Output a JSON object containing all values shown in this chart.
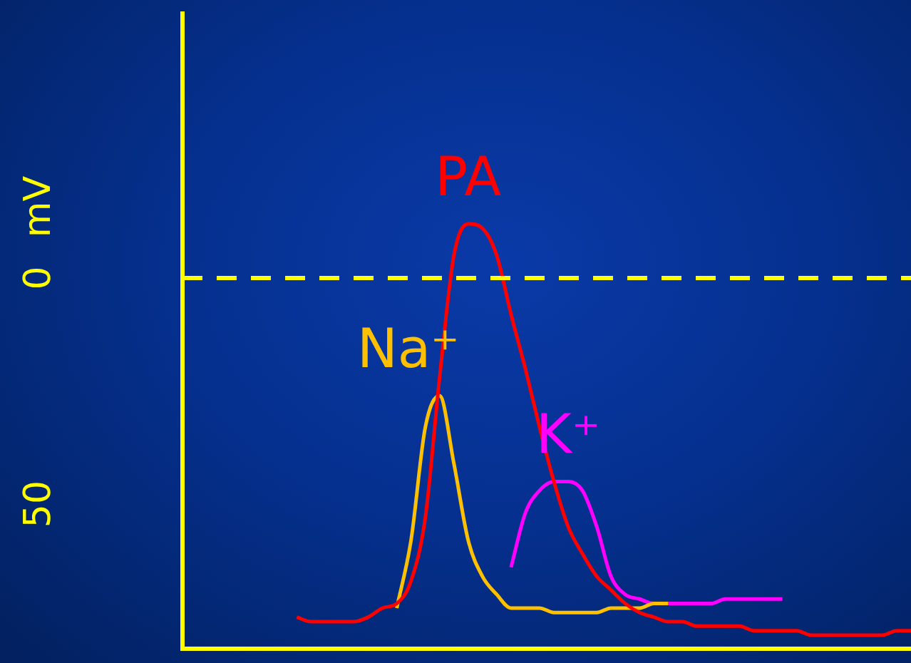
{
  "chart_data": {
    "type": "line",
    "ylabel": "mV",
    "categories": [
      null,
      null,
      null,
      null,
      null,
      null,
      null,
      null,
      null,
      null,
      null,
      null,
      null,
      null,
      null,
      null,
      null,
      null,
      null,
      null,
      null,
      null,
      null,
      null,
      null,
      null,
      null,
      null,
      null,
      null,
      null,
      null,
      null,
      null,
      null,
      null,
      null,
      null,
      null,
      null,
      null,
      null,
      null,
      null,
      null,
      null,
      null,
      null,
      null,
      null,
      null,
      null
    ],
    "series": [
      {
        "name": "PA",
        "color": "#ff0000",
        "values": [
          null,
          null,
          null,
          null,
          null,
          null,
          null,
          null,
          -75,
          -76,
          -76,
          -76,
          -76,
          -75,
          -73,
          -72,
          -67,
          -53,
          -22,
          5,
          12,
          11,
          5,
          -8,
          -20,
          -33,
          -45,
          -55,
          -61,
          -66,
          -69,
          -72,
          -74,
          -75,
          -76,
          -76,
          -77,
          -77,
          -77,
          -77,
          -78,
          -78,
          -78,
          -78,
          -79,
          -79,
          -79,
          -79,
          -79,
          -79,
          -78,
          -78
        ]
      },
      {
        "name": "Na⁺",
        "color": "#ffc000",
        "values": [
          null,
          null,
          null,
          null,
          null,
          null,
          null,
          null,
          null,
          null,
          null,
          null,
          null,
          null,
          null,
          -73,
          -58,
          -33,
          -26,
          -41,
          -58,
          -66,
          -70,
          -73,
          -73,
          -73,
          -74,
          -74,
          -74,
          -74,
          -73,
          -73,
          -73,
          -72,
          -72,
          null,
          null,
          null,
          null,
          null,
          null,
          null,
          null,
          null,
          null,
          null,
          null,
          null,
          null,
          null,
          null,
          null
        ]
      },
      {
        "name": "K⁺",
        "color": "#ff00ff",
        "values": [
          null,
          null,
          null,
          null,
          null,
          null,
          null,
          null,
          null,
          null,
          null,
          null,
          null,
          null,
          null,
          null,
          null,
          null,
          null,
          null,
          null,
          null,
          null,
          -64,
          -52,
          -47,
          -45,
          -45,
          -47,
          -55,
          -66,
          -70,
          -71,
          -72,
          -72,
          -72,
          -72,
          -72,
          -71,
          -71,
          -71,
          -71,
          -71,
          null,
          null,
          null,
          null,
          null,
          null,
          null,
          null,
          null
        ]
      }
    ],
    "ylim": [
      -82,
      59
    ],
    "yticks": [
      {
        "value": 0,
        "label": "0"
      },
      {
        "value": -50,
        "label": "50"
      }
    ],
    "ref_lines": [
      {
        "axis": "y",
        "value": 0,
        "color": "#ffff00",
        "line_style": "dashed"
      }
    ],
    "grid": false,
    "legend": false,
    "marker": "none",
    "line_style": "solid",
    "tick_labels": "y"
  }
}
